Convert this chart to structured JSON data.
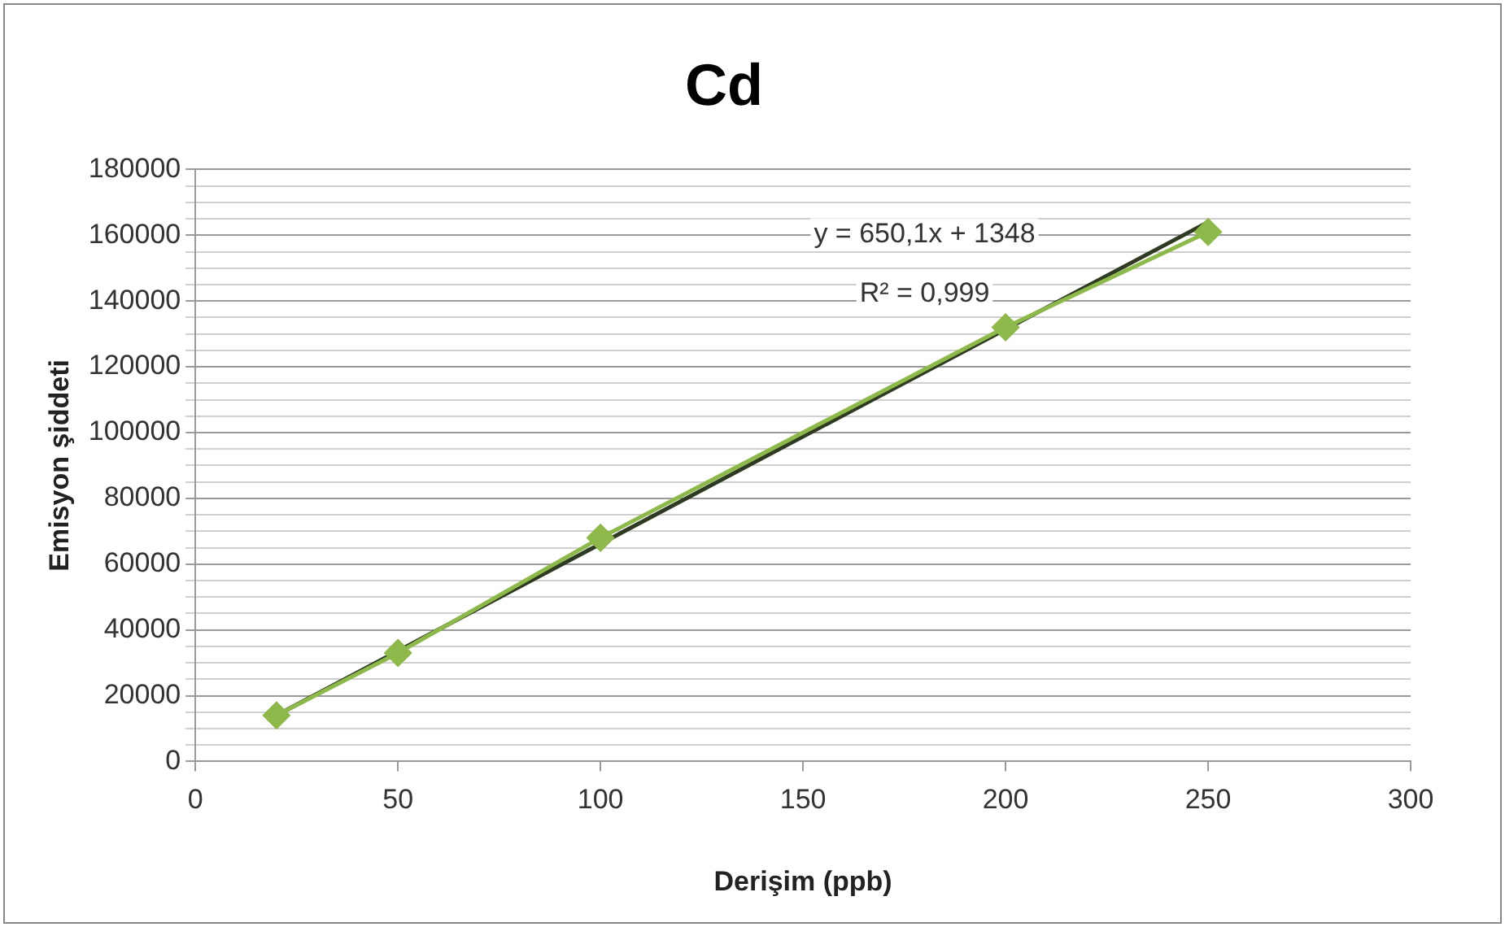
{
  "chart_data": {
    "type": "line",
    "title": "Cd",
    "xlabel": "Derişim (ppb)",
    "ylabel": "Emisyon şiddeti",
    "xlim": [
      0,
      300
    ],
    "xticks": [
      0,
      50,
      100,
      150,
      200,
      250,
      300
    ],
    "ylim": [
      0,
      180000
    ],
    "yticks": [
      0,
      {
        "value": 5000,
        "label": null
      },
      {
        "value": 10000,
        "label": null
      },
      {
        "value": 15000,
        "label": null
      },
      20000,
      {
        "value": 25000,
        "label": null
      },
      {
        "value": 30000,
        "label": null
      },
      {
        "value": 35000,
        "label": null
      },
      40000,
      {
        "value": 45000,
        "label": null
      },
      {
        "value": 50000,
        "label": null
      },
      {
        "value": 55000,
        "label": null
      },
      60000,
      {
        "value": 65000,
        "label": null
      },
      {
        "value": 70000,
        "label": null
      },
      {
        "value": 75000,
        "label": null
      },
      80000,
      {
        "value": 85000,
        "label": null
      },
      {
        "value": 90000,
        "label": null
      },
      {
        "value": 95000,
        "label": null
      },
      100000,
      {
        "value": 105000,
        "label": null
      },
      {
        "value": 110000,
        "label": null
      },
      {
        "value": 115000,
        "label": null
      },
      120000,
      {
        "value": 125000,
        "label": null
      },
      {
        "value": 130000,
        "label": null
      },
      {
        "value": 135000,
        "label": null
      },
      140000,
      {
        "value": 145000,
        "label": null
      },
      {
        "value": 150000,
        "label": null
      },
      {
        "value": 155000,
        "label": null
      },
      160000,
      {
        "value": 165000,
        "label": null
      },
      {
        "value": 170000,
        "label": null
      },
      {
        "value": 175000,
        "label": null
      },
      180000
    ],
    "grid": "y",
    "legend": false,
    "series": [
      {
        "type": "line",
        "color": "#8db94a",
        "marker": "diamond",
        "x": [
          20,
          50,
          100,
          200,
          250
        ],
        "values": [
          14000,
          33000,
          68000,
          132000,
          161000
        ]
      },
      {
        "type": "line",
        "color": "#2f3a22",
        "marker": "none",
        "x": [
          20,
          250
        ],
        "values": [
          14000,
          164000
        ]
      }
    ],
    "annotations": [
      "y = 650,1x + 1348",
      "R² = 0,999"
    ]
  }
}
